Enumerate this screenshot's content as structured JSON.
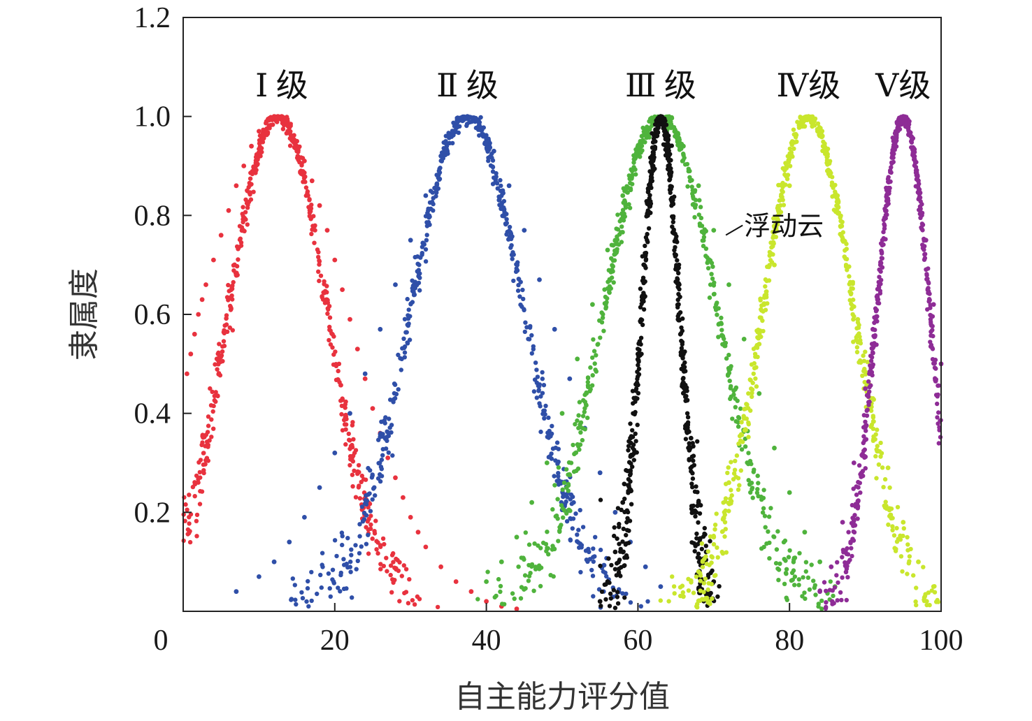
{
  "chart_data": {
    "type": "scatter",
    "title": "",
    "xlabel": "自主能力评分值",
    "ylabel": "隶属度",
    "xlim": [
      0,
      100
    ],
    "ylim": [
      0,
      1.2
    ],
    "x_ticks": [
      "0",
      "20",
      "40",
      "60",
      "80",
      "100"
    ],
    "y_ticks": [
      "0.2",
      "0.4",
      "0.6",
      "0.8",
      "1.0",
      "1.2"
    ],
    "grid": false,
    "legend": "none",
    "series": [
      {
        "name": "Ⅰ级",
        "color": "#e8323e",
        "center": 12.5,
        "spread": 6.5,
        "x": [
          0.5,
          1.0,
          1.5,
          2.0,
          2.5,
          3.0,
          4.0,
          5.0,
          6.0,
          7.0,
          8.0,
          9.0,
          10.0,
          11.0,
          12.0,
          12.5,
          13.0,
          14.0,
          15.0,
          16.0,
          17.0,
          18.0,
          19.0,
          20.0,
          21.0,
          22.0,
          23.0,
          24.0,
          25.0,
          26.0,
          27.0,
          28.0,
          29.0,
          30.0,
          31.0,
          32.0,
          34.0,
          36.0,
          38.0,
          40.0,
          42.0,
          44.0
        ],
        "y": [
          0.48,
          0.52,
          0.56,
          0.6,
          0.63,
          0.66,
          0.71,
          0.76,
          0.81,
          0.86,
          0.9,
          0.94,
          0.97,
          0.99,
          1.0,
          1.0,
          1.0,
          0.98,
          0.95,
          0.91,
          0.87,
          0.82,
          0.77,
          0.71,
          0.65,
          0.59,
          0.53,
          0.47,
          0.41,
          0.36,
          0.31,
          0.27,
          0.23,
          0.19,
          0.16,
          0.13,
          0.09,
          0.06,
          0.04,
          0.02,
          0.01,
          0.005
        ]
      },
      {
        "name": "Ⅱ级",
        "color": "#2f4fa8",
        "center": 37.5,
        "spread": 7.5,
        "x": [
          7.0,
          10.0,
          12.0,
          14.0,
          16.0,
          18.0,
          20.0,
          22.0,
          24.0,
          26.0,
          28.0,
          30.0,
          32.0,
          34.0,
          36.0,
          37.5,
          39.0,
          41.0,
          43.0,
          45.0,
          47.0,
          49.0,
          51.0,
          53.0,
          55.0,
          57.0,
          59.0,
          61.0,
          63.0
        ],
        "y": [
          0.04,
          0.07,
          0.1,
          0.14,
          0.19,
          0.25,
          0.32,
          0.4,
          0.48,
          0.57,
          0.66,
          0.75,
          0.84,
          0.92,
          0.98,
          1.0,
          0.98,
          0.93,
          0.86,
          0.77,
          0.67,
          0.57,
          0.47,
          0.37,
          0.28,
          0.2,
          0.14,
          0.09,
          0.05
        ]
      },
      {
        "name": "Ⅲ级",
        "color": "#4fb33c",
        "center": 63.0,
        "spread": 7.5,
        "x": [
          40.0,
          42.0,
          44.0,
          46.0,
          48.0,
          50.0,
          52.0,
          54.0,
          56.0,
          58.0,
          60.0,
          62.0,
          63.0,
          64.0,
          66.0,
          68.0,
          70.0,
          72.0,
          74.0,
          76.0,
          78.0,
          80.0,
          82.0,
          84.0,
          86.0
        ],
        "y": [
          0.06,
          0.1,
          0.15,
          0.22,
          0.3,
          0.4,
          0.51,
          0.62,
          0.73,
          0.84,
          0.93,
          0.99,
          1.0,
          0.99,
          0.94,
          0.86,
          0.77,
          0.66,
          0.55,
          0.44,
          0.33,
          0.24,
          0.16,
          0.1,
          0.05
        ]
      },
      {
        "name": "浮动云",
        "color": "#111111",
        "center": 63.0,
        "spread": 2.5,
        "x": [
          55.0,
          56.0,
          57.0,
          58.0,
          59.0,
          60.0,
          61.0,
          62.0,
          62.5,
          63.0,
          63.5,
          64.0,
          65.0,
          66.0,
          67.0,
          68.0,
          69.0,
          70.0
        ],
        "y": [
          0.02,
          0.06,
          0.12,
          0.22,
          0.35,
          0.52,
          0.72,
          0.9,
          0.97,
          1.0,
          0.97,
          0.9,
          0.72,
          0.52,
          0.35,
          0.22,
          0.12,
          0.06
        ]
      },
      {
        "name": "Ⅳ级",
        "color": "#c9e62d",
        "center": 82.5,
        "spread": 6.0,
        "x": [
          66.0,
          68.0,
          70.0,
          72.0,
          74.0,
          76.0,
          78.0,
          80.0,
          82.0,
          82.5,
          83.0,
          85.0,
          87.0,
          89.0,
          91.0,
          93.0,
          95.0,
          97.0,
          99.0
        ],
        "y": [
          0.03,
          0.08,
          0.15,
          0.26,
          0.39,
          0.54,
          0.7,
          0.86,
          0.98,
          1.0,
          0.98,
          0.89,
          0.75,
          0.59,
          0.43,
          0.29,
          0.18,
          0.1,
          0.05
        ]
      },
      {
        "name": "Ⅴ级",
        "color": "#8e2c96",
        "center": 95.0,
        "spread": 3.5,
        "x": [
          84.0,
          85.5,
          87.0,
          88.5,
          90.0,
          91.0,
          92.0,
          93.0,
          94.0,
          95.0,
          96.0,
          97.0,
          98.0,
          99.0,
          100.0
        ],
        "y": [
          0.04,
          0.09,
          0.18,
          0.3,
          0.45,
          0.57,
          0.7,
          0.83,
          0.94,
          1.0,
          0.96,
          0.87,
          0.75,
          0.62,
          0.5
        ]
      }
    ],
    "annotations": [
      {
        "text": "Ⅰ 级",
        "x": 13,
        "y": 1.06
      },
      {
        "text": "Ⅱ 级",
        "x": 37.5,
        "y": 1.06
      },
      {
        "text": "Ⅲ 级",
        "x": 63,
        "y": 1.06
      },
      {
        "text": "Ⅳ级",
        "x": 82.5,
        "y": 1.06
      },
      {
        "text": "Ⅴ级",
        "x": 95,
        "y": 1.06
      },
      {
        "text": "浮动云",
        "x": 74,
        "y": 0.78
      }
    ]
  }
}
